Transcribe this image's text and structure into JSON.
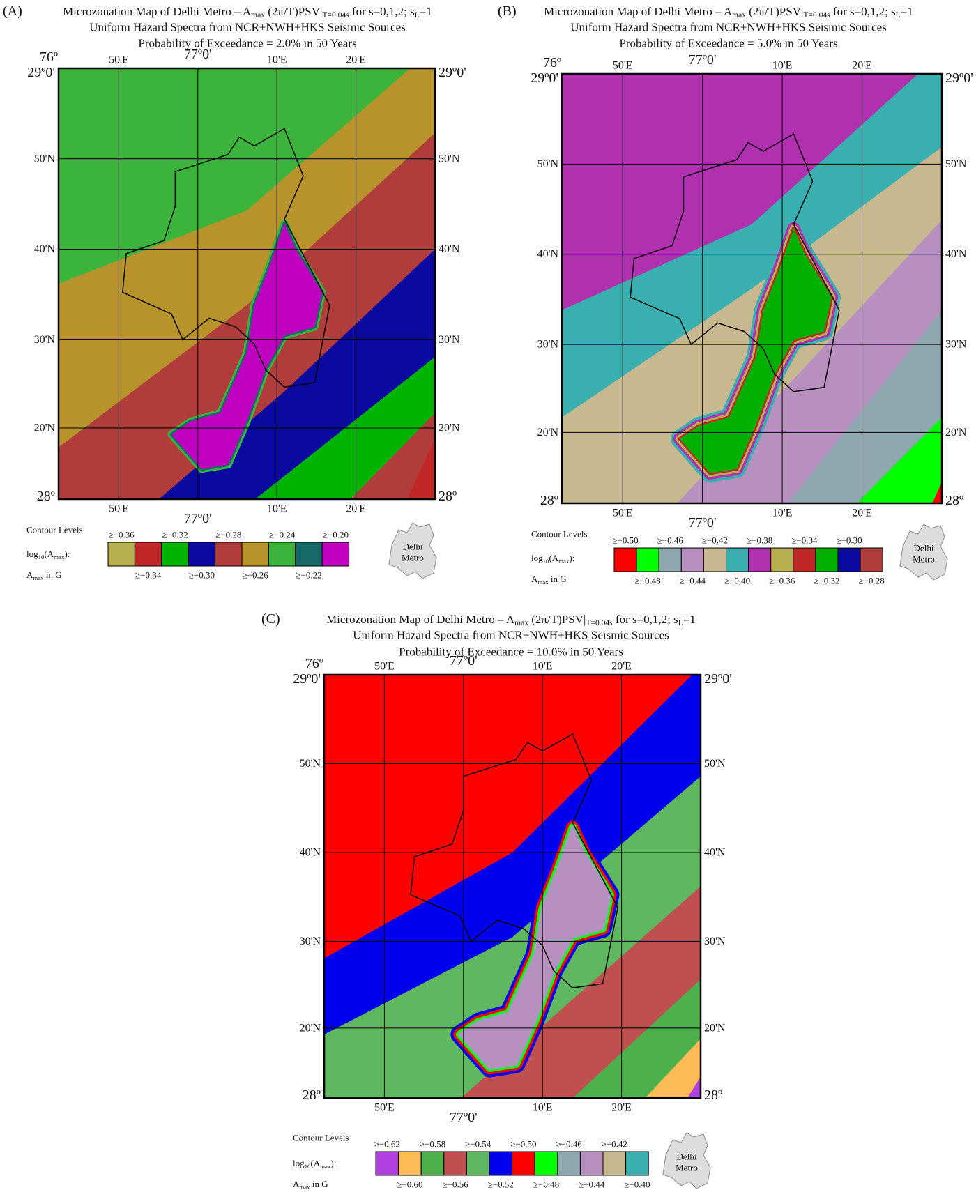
{
  "panels": [
    {
      "label": "(A)",
      "title": [
        "Microzonation Map of Delhi Metro – A",
        "max",
        " (2π/T)PSV|",
        "T=0.04s",
        " for s=0,1,2; s",
        "L",
        "=1"
      ],
      "subtitle": "Uniform Hazard Spectra from NCR+NWH+HKS Seismic Sources",
      "probability": "Probability of Exceedance =  2.0% in 50 Years",
      "top_labels": [
        "76º",
        "50'E",
        "77º0'",
        "10'E",
        "20'E"
      ],
      "bottom_labels": [
        "50'E",
        "77º0'",
        "10'E",
        "20'E"
      ],
      "left_labels": [
        "29º0'",
        "50'N",
        "40'N",
        "30'N",
        "20'N",
        "28º"
      ],
      "right_labels": [
        "29º0'",
        "50'N",
        "40'N",
        "30'N",
        "20'N",
        "28º"
      ],
      "legend": {
        "heading": "Contour Levels",
        "scale_label": [
          "log",
          "10",
          "(A",
          "max",
          "):"
        ],
        "unit_label": [
          "A",
          "max",
          " in G"
        ],
        "levels": [
          {
            "label": "≥−0.36",
            "color": "#b8b050"
          },
          {
            "label": "≥−0.34",
            "color": "#c02828"
          },
          {
            "label": "≥−0.32",
            "color": "#00b400"
          },
          {
            "label": "≥−0.30",
            "color": "#0a0aa0"
          },
          {
            "label": "≥−0.28",
            "color": "#b03c3c"
          },
          {
            "label": "≥−0.26",
            "color": "#b8922a"
          },
          {
            "label": "≥−0.24",
            "color": "#3cb43c"
          },
          {
            "label": "≥−0.22",
            "color": "#186a6a"
          },
          {
            "label": "≥−0.20",
            "color": "#c000c0"
          }
        ]
      },
      "inset_label": [
        "Delhi",
        "Metro"
      ]
    },
    {
      "label": "(B)",
      "title": [
        "Microzonation Map of Delhi Metro – A",
        "max",
        " (2π/T)PSV|",
        "T=0.04s",
        " for s=0,1,2; s",
        "L",
        "=1"
      ],
      "subtitle": "Uniform Hazard Spectra from NCR+NWH+HKS Seismic Sources",
      "probability": "Probability of Exceedance =  5.0% in 50 Years",
      "top_labels": [
        "76º",
        "50'E",
        "77º0'",
        "10'E",
        "20'E"
      ],
      "bottom_labels": [
        "50'E",
        "77º0'",
        "10'E",
        "20'E"
      ],
      "left_labels": [
        "29º0'",
        "50'N",
        "40'N",
        "30'N",
        "20'N",
        "28º"
      ],
      "right_labels": [
        "29º0'",
        "50'N",
        "40'N",
        "30'N",
        "20'N",
        "28º"
      ],
      "legend": {
        "heading": "Contour Levels",
        "scale_label": [
          "log",
          "10",
          "(A",
          "max",
          "):"
        ],
        "unit_label": [
          "A",
          "max",
          " in G"
        ],
        "levels": [
          {
            "label": "≥−0.50",
            "color": "#ff0000"
          },
          {
            "label": "≥−0.48",
            "color": "#00ff00"
          },
          {
            "label": "≥−0.46",
            "color": "#8fa8b0"
          },
          {
            "label": "≥−0.44",
            "color": "#b890c0"
          },
          {
            "label": "≥−0.42",
            "color": "#c8b890"
          },
          {
            "label": "≥−0.40",
            "color": "#3aafaf"
          },
          {
            "label": "≥−0.38",
            "color": "#b030b0"
          },
          {
            "label": "≥−0.36",
            "color": "#b8b050"
          },
          {
            "label": "≥−0.34",
            "color": "#c02828"
          },
          {
            "label": "≥−0.32",
            "color": "#00b000"
          },
          {
            "label": "≥−0.30",
            "color": "#0a0aa0"
          },
          {
            "label": "≥−0.28",
            "color": "#b03c3c"
          }
        ]
      },
      "inset_label": [
        "Delhi",
        "Metro"
      ]
    },
    {
      "label": "(C)",
      "title": [
        "Microzonation Map of Delhi Metro – A",
        "max",
        " (2π/T)PSV|",
        "T=0.04s",
        " for s=0,1,2; s",
        "L",
        "=1"
      ],
      "subtitle": "Uniform Hazard Spectra from NCR+NWH+HKS Seismic Sources",
      "probability": "Probability of Exceedance = 10.0% in 50 Years",
      "top_labels": [
        "76º",
        "50'E",
        "77º0'",
        "10'E",
        "20'E"
      ],
      "bottom_labels": [
        "50'E",
        "77º0'",
        "10'E",
        "20'E"
      ],
      "left_labels": [
        "29º0'",
        "50'N",
        "40'N",
        "30'N",
        "20'N",
        "28º"
      ],
      "right_labels": [
        "29º0'",
        "50'N",
        "40'N",
        "30'N",
        "20'N",
        "28º"
      ],
      "legend": {
        "heading": "Contour Levels",
        "scale_label": [
          "log",
          "10",
          "(A",
          "max",
          "):"
        ],
        "unit_label": [
          "A",
          "max",
          " in G"
        ],
        "levels": [
          {
            "label": "≥−0.62",
            "color": "#b040e0"
          },
          {
            "label": "≥−0.60",
            "color": "#ffbb55"
          },
          {
            "label": "≥−0.58",
            "color": "#4cb04c"
          },
          {
            "label": "≥−0.56",
            "color": "#c05050"
          },
          {
            "label": "≥−0.54",
            "color": "#5fb85f"
          },
          {
            "label": "≥−0.52",
            "color": "#0000ee"
          },
          {
            "label": "≥−0.50",
            "color": "#ff0000"
          },
          {
            "label": "≥−0.48",
            "color": "#00ff00"
          },
          {
            "label": "≥−0.46",
            "color": "#8fa8b0"
          },
          {
            "label": "≥−0.44",
            "color": "#b890c0"
          },
          {
            "label": "≥−0.42",
            "color": "#c8b890"
          },
          {
            "label": "≥−0.40",
            "color": "#3aafaf"
          }
        ]
      },
      "inset_label": [
        "Delhi",
        "Metro"
      ]
    }
  ]
}
